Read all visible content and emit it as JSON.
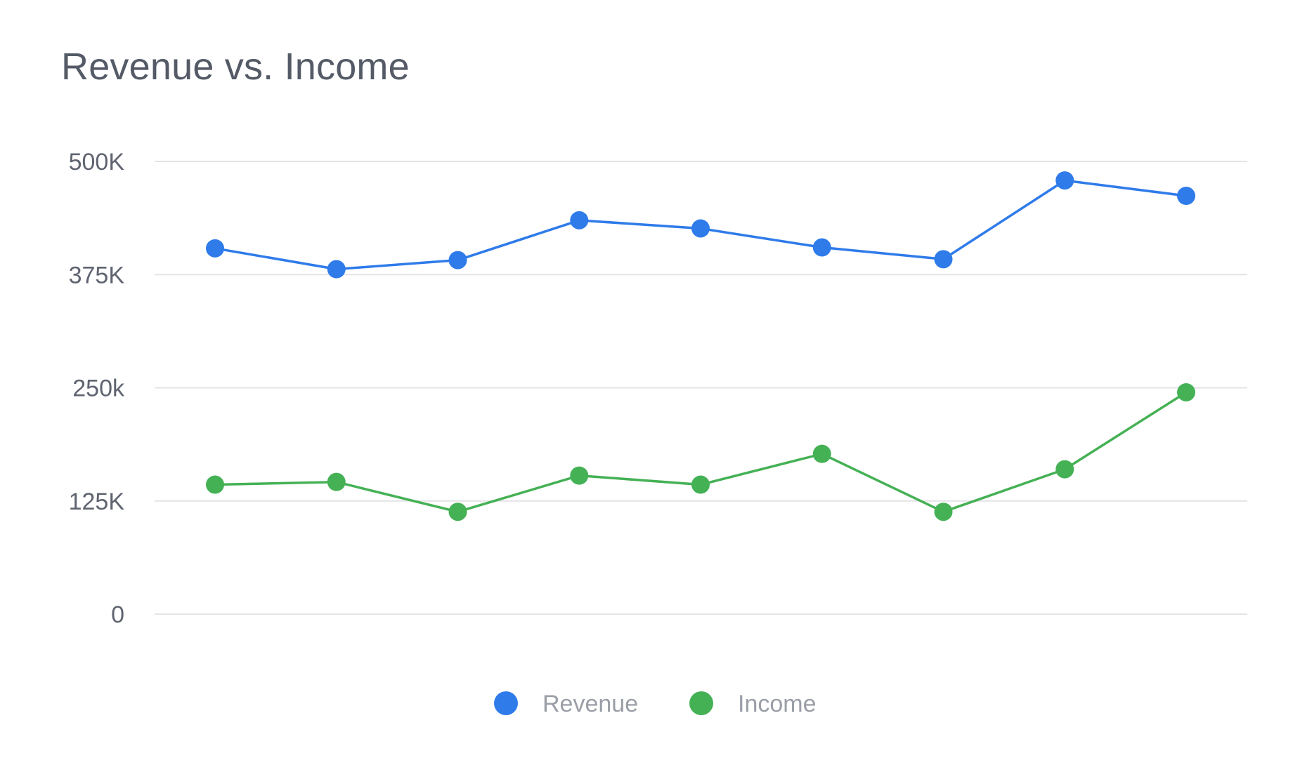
{
  "chart_data": {
    "type": "line",
    "title": "Revenue vs. Income",
    "x": [
      1,
      2,
      3,
      4,
      5,
      6,
      7,
      8,
      9
    ],
    "ylim": [
      0,
      500000
    ],
    "yticks": [
      {
        "value": 0,
        "label": "0"
      },
      {
        "value": 125000,
        "label": "125K"
      },
      {
        "value": 250000,
        "label": "250k"
      },
      {
        "value": 375000,
        "label": "375K"
      },
      {
        "value": 500000,
        "label": "500K"
      }
    ],
    "grid": true,
    "legend_position": "bottom-center",
    "series": [
      {
        "name": "Revenue",
        "color": "#2f7bea",
        "values": [
          404000,
          381000,
          391000,
          435000,
          426000,
          405000,
          392000,
          479000,
          462000
        ]
      },
      {
        "name": "Income",
        "color": "#45b155",
        "values": [
          143000,
          146000,
          113000,
          153000,
          143000,
          177000,
          113000,
          160000,
          245000
        ]
      }
    ]
  }
}
